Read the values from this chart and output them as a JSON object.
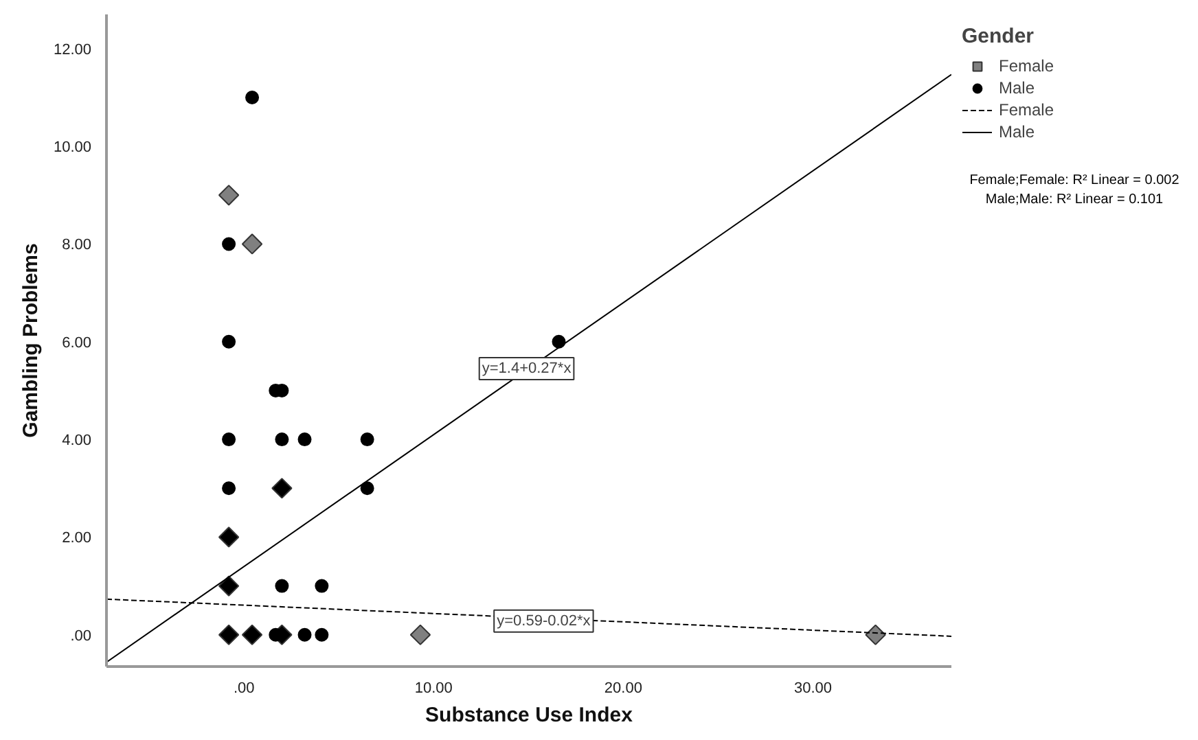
{
  "chart_data": {
    "type": "scatter",
    "xlabel": "Substance Use Index",
    "ylabel": "Gambling Problems",
    "legend_title": "Gender",
    "legend": "top right",
    "grid": false,
    "xlim": [
      -7.25,
      37.3
    ],
    "ylim": [
      -0.65,
      12.7
    ],
    "xticks": [
      {
        "value": 0,
        "label": ".00"
      },
      {
        "value": 10,
        "label": "10.00"
      },
      {
        "value": 20,
        "label": "20.00"
      },
      {
        "value": 30,
        "label": "30.00"
      }
    ],
    "yticks": [
      {
        "value": 0,
        "label": ".00"
      },
      {
        "value": 2,
        "label": "2.00"
      },
      {
        "value": 4,
        "label": "4.00"
      },
      {
        "value": 6,
        "label": "6.00"
      },
      {
        "value": 8,
        "label": "8.00"
      },
      {
        "value": 10,
        "label": "10.00"
      },
      {
        "value": 12,
        "label": "12.00"
      }
    ],
    "series": [
      {
        "name": "Female",
        "type": "scatter",
        "marker": "diamond",
        "color": "#808080",
        "x": [
          -0.8,
          0.43,
          9.3,
          33.3,
          2.0,
          -0.8,
          -0.8,
          -0.8,
          0.43,
          2.0
        ],
        "values": [
          9,
          8,
          0,
          0,
          3,
          2,
          1,
          0,
          0,
          0
        ],
        "colors": [
          "#808080",
          "#808080",
          "#808080",
          "#808080",
          "#000000",
          "#000000",
          "#000000",
          "#000000",
          "#000000",
          "#000000"
        ]
      },
      {
        "name": "Male",
        "type": "scatter",
        "marker": "circle",
        "color": "#000000",
        "x": [
          0.43,
          -0.8,
          -0.8,
          1.67,
          2.0,
          -0.8,
          2.0,
          3.2,
          6.5,
          -0.8,
          6.5,
          2.0,
          4.1,
          3.2,
          4.1,
          16.6,
          1.67
        ],
        "values": [
          11,
          8,
          6,
          5,
          5,
          4,
          4,
          4,
          4,
          3,
          3,
          1,
          1,
          0,
          0,
          6,
          0
        ]
      },
      {
        "name": "Female",
        "type": "line",
        "line_style": "dashed",
        "color": "#000000",
        "x": [
          -7.25,
          37.3
        ],
        "values": [
          0.73,
          -0.03
        ]
      },
      {
        "name": "Male",
        "type": "line",
        "line_style": "solid",
        "color": "#000000",
        "x": [
          -7.25,
          37.3
        ],
        "values": [
          -0.56,
          11.47
        ]
      }
    ],
    "annotations": [
      {
        "text": "y=1.4+0.27*x",
        "x": 14.9,
        "y": 5.45
      },
      {
        "text": "y=0.59-0.02*x",
        "x": 15.8,
        "y": 0.28
      },
      "Female;Female: R² Linear = 0.002",
      "Male;Male: R² Linear = 0.101"
    ]
  }
}
